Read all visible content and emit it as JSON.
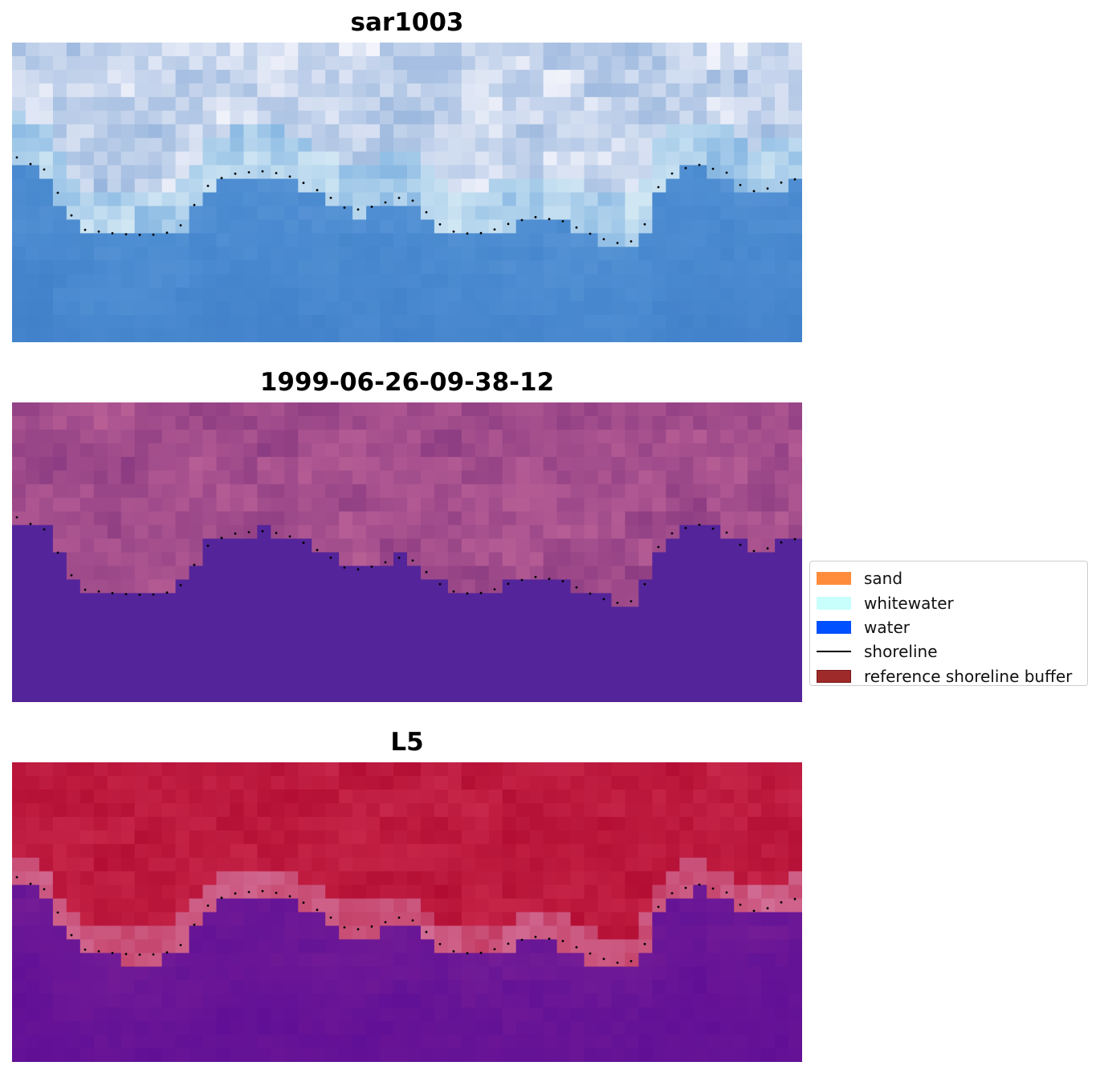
{
  "panels": [
    {
      "title": "sar1003",
      "style": "rgb"
    },
    {
      "title": "1999-06-26-09-38-12",
      "style": "classified"
    },
    {
      "title": "L5",
      "style": "index"
    }
  ],
  "legend": {
    "items": [
      {
        "label": "sand",
        "color": "#ff8c3a",
        "kind": "patch"
      },
      {
        "label": "whitewater",
        "color": "#c8fffc",
        "kind": "patch"
      },
      {
        "label": "water",
        "color": "#0050ff",
        "kind": "patch"
      },
      {
        "label": "shoreline",
        "color": "#000000",
        "kind": "line"
      },
      {
        "label": "reference shoreline buffer",
        "color": "#9e2a2a",
        "kind": "patch"
      }
    ]
  },
  "colors": {
    "water_class": "#54249a",
    "whitewater_class": "#9b4a8a",
    "index_land": "#c0143a",
    "index_water": "#6a1596",
    "rgb_sky": "#e8ecf4",
    "rgb_water": "#4a8ad0"
  }
}
